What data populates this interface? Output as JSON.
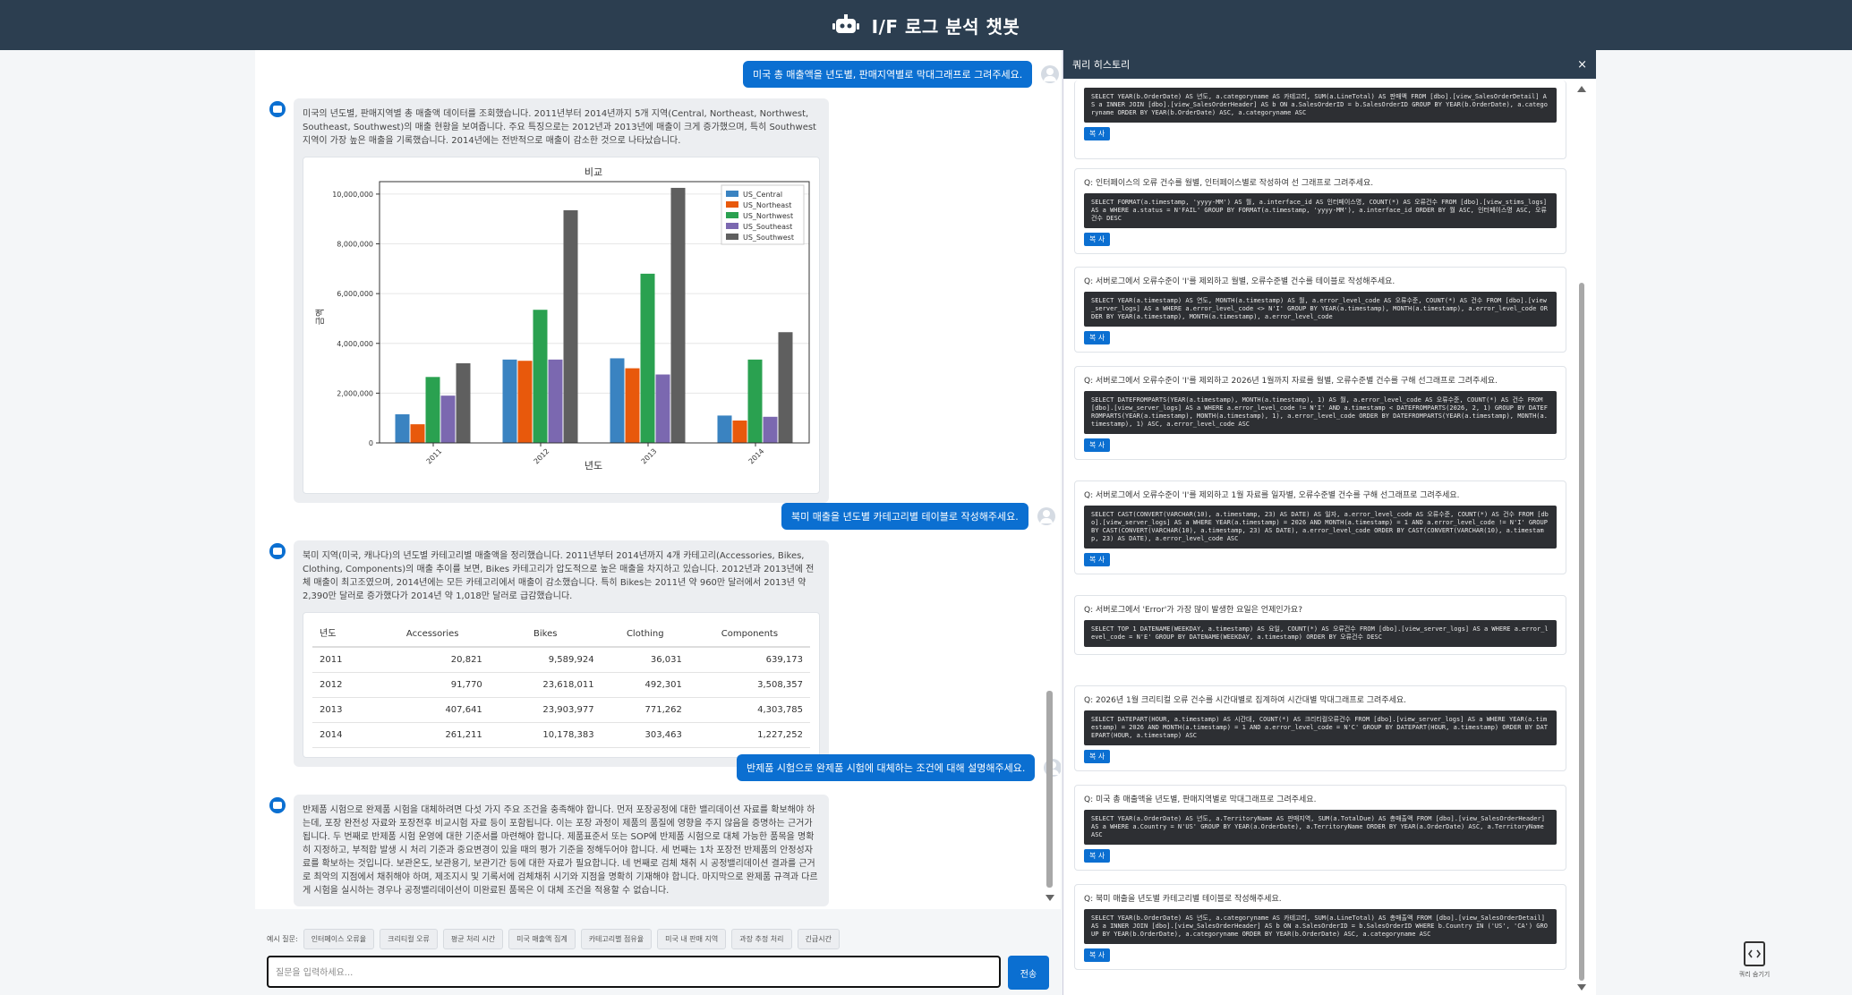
{
  "app": {
    "title": "I/F 로그 분석 챗봇"
  },
  "chat": {
    "messages": [
      {
        "role": "user",
        "text": "미국 총 매출액을 년도별, 판매지역별로 막대그래프로 그려주세요."
      },
      {
        "role": "bot",
        "text": "미국의 년도별, 판매지역별 총 매출액 데이터를 조회했습니다. 2011년부터 2014년까지 5개 지역(Central, Northeast, Northwest, Southeast, Southwest)의 매출 현황을 보여줍니다. 주요 특징으로는 2012년과 2013년에 매출이 크게 증가했으며, 특히 Southwest 지역이 가장 높은 매출을 기록했습니다. 2014년에는 전반적으로 매출이 감소한 것으로 나타났습니다."
      },
      {
        "role": "user",
        "text": "북미 매출을 년도별 카테고리별 테이블로 작성해주세요."
      },
      {
        "role": "bot",
        "text": "북미 지역(미국, 캐나다)의 년도별 카테고리별 매출액을 정리했습니다. 2011년부터 2014년까지 4개 카테고리(Accessories, Bikes, Clothing, Components)의 매출 추이를 보면, Bikes 카테고리가 압도적으로 높은 매출을 차지하고 있습니다. 2012년과 2013년에 전체 매출이 최고조였으며, 2014년에는 모든 카테고리에서 매출이 감소했습니다. 특히 Bikes는 2011년 약 960만 달러에서 2013년 약 2,390만 달러로 증가했다가 2014년 약 1,018만 달러로 급감했습니다."
      },
      {
        "role": "user",
        "text": "반제품 시험으로 완제품 시험에 대체하는 조건에 대해 설명해주세요."
      },
      {
        "role": "bot",
        "text": "반제품 시험으로 완제품 시험을 대체하려면 다섯 가지 주요 조건을 충족해야 합니다. 먼저 포장공정에 대한 밸리데이션 자료를 확보해야 하는데, 포장 완전성 자료와 포장전후 비교시험 자료 등이 포함됩니다. 이는 포장 과정이 제품의 품질에 영향을 주지 않음을 증명하는 근거가 됩니다. 두 번째로 반제품 시험 운영에 대한 기준서를 마련해야 합니다. 제품표준서 또는 SOP에 반제품 시험으로 대체 가능한 품목을 명확히 지정하고, 부적합 발생 시 처리 기준과 중요변경이 있을 때의 평가 기준을 정해두어야 합니다. 세 번째는 1차 포장전 반제품의 안정성자료를 확보하는 것입니다. 보관온도, 보관용기, 보관기간 등에 대한 자료가 필요합니다. 네 번째로 검체 채취 시 공정밸리데이션 결과를 근거로 최악의 지점에서 채취해야 하며, 제조지시 및 기록서에 검체채취 시기와 지점을 명확히 기재해야 합니다. 마지막으로 완제품 규격과 다르게 시험을 실시하는 경우나 공정밸리데이션이 미완료된 품목은 이 대체 조건을 적용할 수 없습니다."
      }
    ],
    "table": {
      "headers": [
        "년도",
        "Accessories",
        "Bikes",
        "Clothing",
        "Components"
      ],
      "rows": [
        [
          "2011",
          "20,821",
          "9,589,924",
          "36,031",
          "639,173"
        ],
        [
          "2012",
          "91,770",
          "23,618,011",
          "492,301",
          "3,508,357"
        ],
        [
          "2013",
          "407,641",
          "23,903,977",
          "771,262",
          "4,303,785"
        ],
        [
          "2014",
          "261,211",
          "10,178,383",
          "303,463",
          "1,227,252"
        ]
      ]
    }
  },
  "chart_data": {
    "type": "bar",
    "title": "비교",
    "xlabel": "년도",
    "ylabel": "금액",
    "categories": [
      "2011",
      "2012",
      "2013",
      "2014"
    ],
    "ylim": [
      0,
      10500000
    ],
    "yticks": [
      "0",
      "2,000,000",
      "4,000,000",
      "6,000,000",
      "8,000,000",
      "10,000,000"
    ],
    "legend_position": "top-right",
    "series": [
      {
        "name": "US_Central",
        "color": "#3a83c1",
        "values": [
          1150000,
          3350000,
          3400000,
          1100000
        ]
      },
      {
        "name": "US_Northeast",
        "color": "#e8590c",
        "values": [
          750000,
          3300000,
          3000000,
          900000
        ]
      },
      {
        "name": "US_Northwest",
        "color": "#2aa150",
        "values": [
          2650000,
          5350000,
          6800000,
          3350000
        ]
      },
      {
        "name": "US_Southeast",
        "color": "#7b68b0",
        "values": [
          1900000,
          3350000,
          2750000,
          1050000
        ]
      },
      {
        "name": "US_Southwest",
        "color": "#5f5f5f",
        "values": [
          3200000,
          9350000,
          10250000,
          4450000
        ]
      }
    ]
  },
  "input": {
    "examples_label": "예시 질문:",
    "examples": [
      "인터페이스 오류율",
      "크리티컬 오류",
      "평균 처리 시간",
      "미국 매출액 집계",
      "카테고리별 점유율",
      "미국 내 판매 지역",
      "과장 추정 처리",
      "긴급시간"
    ],
    "placeholder": "질문을 입력하세요...",
    "send_label": "전송"
  },
  "history": {
    "title": "쿼리 히스토리",
    "close": "×",
    "copy_label": "복 사",
    "items": [
      {
        "q": "",
        "sql": "SELECT YEAR(b.OrderDate) AS 년도, a.categoryname AS 카테고리, SUM(a.LineTotal) AS 판매액 FROM [dbo].[view_SalesOrderDetail] AS a INNER JOIN [dbo].[view_SalesOrderHeader] AS b ON a.SalesOrderID = b.SalesOrderID GROUP BY YEAR(b.OrderDate), a.categoryname ORDER BY YEAR(b.OrderDate) ASC, a.categoryname ASC"
      },
      {
        "q": "Q: 인터페이스의 오류 건수를 월별, 인터페이스별로 작성하여 선 그래프로 그려주세요.",
        "sql": "SELECT FORMAT(a.timestamp, 'yyyy-MM') AS 월, a.interface_id AS 인터페이스명, COUNT(*) AS 오류건수 FROM [dbo].[view_stims_logs] AS a WHERE a.status = N'FAIL' GROUP BY FORMAT(a.timestamp, 'yyyy-MM'), a.interface_id ORDER BY 월 ASC, 인터페이스명 ASC, 오류건수 DESC"
      },
      {
        "q": "Q: 서버로그에서 오류수준이 'I'를 제외하고 월별, 오류수준별 건수를 테이블로 작성해주세요.",
        "sql": "SELECT YEAR(a.timestamp) AS 연도, MONTH(a.timestamp) AS 월, a.error_level_code AS 오류수준, COUNT(*) AS 건수 FROM [dbo].[view_server_logs] AS a WHERE a.error_level_code <> N'I' GROUP BY YEAR(a.timestamp), MONTH(a.timestamp), a.error_level_code ORDER BY YEAR(a.timestamp), MONTH(a.timestamp), a.error_level_code"
      },
      {
        "q": "Q: 서버로그에서 오류수준이 'I'를 제외하고 2026년 1월까지 자료를 월별, 오류수준별 건수를 구해 선그래프로 그려주세요.",
        "sql": "SELECT DATEFROMPARTS(YEAR(a.timestamp), MONTH(a.timestamp), 1) AS 월, a.error_level_code AS 오류수준, COUNT(*) AS 건수 FROM [dbo].[view_server_logs] AS a WHERE a.error_level_code != N'I' AND a.timestamp < DATEFROMPARTS(2026, 2, 1) GROUP BY DATEFROMPARTS(YEAR(a.timestamp), MONTH(a.timestamp), 1), a.error_level_code ORDER BY DATEFROMPARTS(YEAR(a.timestamp), MONTH(a.timestamp), 1) ASC, a.error_level_code ASC"
      },
      {
        "q": "Q: 서버로그에서 오류수준이 'I'를 제외하고 1월 자료를 일자별, 오류수준별 건수를 구해 선그래프로 그려주세요.",
        "sql": "SELECT CAST(CONVERT(VARCHAR(10), a.timestamp, 23) AS DATE) AS 일자, a.error_level_code AS 오류수준, COUNT(*) AS 건수 FROM [dbo].[view_server_logs] AS a WHERE YEAR(a.timestamp) = 2026 AND MONTH(a.timestamp) = 1 AND a.error_level_code != N'I' GROUP BY CAST(CONVERT(VARCHAR(10), a.timestamp, 23) AS DATE), a.error_level_code ORDER BY CAST(CONVERT(VARCHAR(10), a.timestamp, 23) AS DATE), a.error_level_code ASC"
      },
      {
        "q": "Q: 서버로그에서 'Error'가 가장 많이 발생한 요일은 언제인가요?",
        "sql": "SELECT TOP 1 DATENAME(WEEKDAY, a.timestamp) AS 요일, COUNT(*) AS 오류건수 FROM [dbo].[view_server_logs] AS a WHERE a.error_level_code = N'E' GROUP BY DATENAME(WEEKDAY, a.timestamp) ORDER BY 오류건수 DESC"
      },
      {
        "q": "Q: 2026년 1월 크리티컬 오류 건수를 시간대별로 집계하여 시간대별 막대그래프로 그려주세요.",
        "sql": "SELECT DATEPART(HOUR, a.timestamp) AS 시간대, COUNT(*) AS 크리티컬오류건수 FROM [dbo].[view_server_logs] AS a WHERE YEAR(a.timestamp) = 2026 AND MONTH(a.timestamp) = 1 AND a.error_level_code = N'C' GROUP BY DATEPART(HOUR, a.timestamp) ORDER BY DATEPART(HOUR, a.timestamp) ASC"
      },
      {
        "q": "Q: 미국 총 매출액을 년도별, 판매지역별로 막대그래프로 그려주세요.",
        "sql": "SELECT YEAR(a.OrderDate) AS 년도, a.TerritoryName AS 판매지역, SUM(a.TotalDue) AS 총매출액 FROM [dbo].[view_SalesOrderHeader] AS a WHERE a.Country = N'US' GROUP BY YEAR(a.OrderDate), a.TerritoryName ORDER BY YEAR(a.OrderDate) ASC, a.TerritoryName ASC"
      },
      {
        "q": "Q: 북미 매출을 년도별 카테고리별 테이블로 작성해주세요.",
        "sql": "SELECT YEAR(b.OrderDate) AS 년도, a.categoryname AS 카테고리, SUM(a.LineTotal) AS 총매출액 FROM [dbo].[view_SalesOrderDetail] AS a INNER JOIN [dbo].[view_SalesOrderHeader] AS b ON a.SalesOrderID = b.SalesOrderID WHERE b.Country IN ('US', 'CA') GROUP BY YEAR(b.OrderDate), a.categoryname ORDER BY YEAR(b.OrderDate) ASC, a.categoryname ASC"
      }
    ]
  },
  "side": {
    "hide_label": "쿼리 숨기기"
  }
}
